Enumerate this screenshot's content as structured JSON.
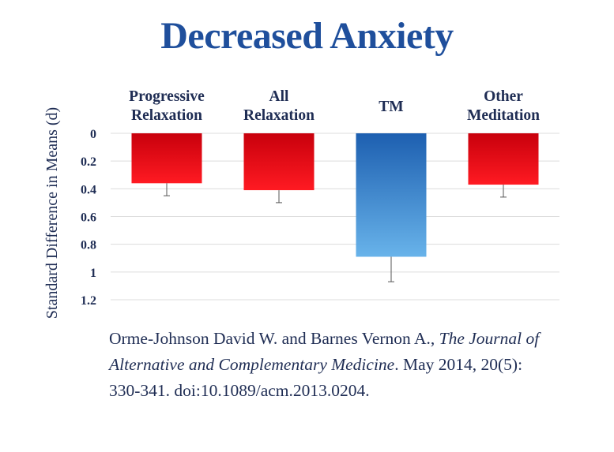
{
  "slide": {
    "title": "Decreased Anxiety"
  },
  "citation": {
    "authors": "Orme-Johnson David W. and Barnes Vernon A., ",
    "journal": "The Journal of Alternative and Complementary Medicine",
    "details": ". May 2014, 20(5): 330-341. doi:10.1089/acm.2013.0204."
  },
  "colors": {
    "red_top": "#c8000c",
    "red_bottom": "#ff1a22",
    "blue_top": "#1d5fb0",
    "blue_bottom": "#68b3ea",
    "grid": "#dcdcdc",
    "axis_text": "#1f2d54"
  },
  "chart_data": {
    "type": "bar",
    "title": "Decreased Anxiety",
    "ylabel": "Standard Difference in Means (d)",
    "xlabel": "",
    "ylim": [
      0,
      1.2
    ],
    "yticks": [
      "0",
      "0.2",
      "0.4",
      "0.6",
      "0.8",
      "1",
      "1.2"
    ],
    "y_inverted": true,
    "grid": true,
    "categories": [
      [
        "Progressive",
        "Relaxation"
      ],
      [
        "All",
        "Relaxation"
      ],
      [
        "TM"
      ],
      [
        "Other",
        "Meditation"
      ]
    ],
    "values": [
      0.36,
      0.41,
      0.89,
      0.37
    ],
    "error_upper": [
      0.45,
      0.5,
      1.07,
      0.46
    ],
    "bar_colors": [
      "red",
      "red",
      "blue",
      "red"
    ]
  }
}
